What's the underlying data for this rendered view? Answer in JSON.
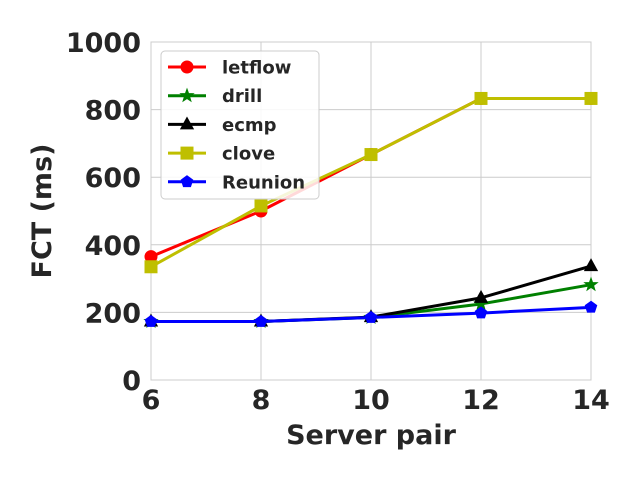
{
  "chart_data": {
    "type": "line",
    "xlabel": "Server pair",
    "ylabel": "FCT (ms)",
    "x": [
      6,
      8,
      10,
      12,
      14
    ],
    "xticks": [
      "6",
      "8",
      "10",
      "12",
      "14"
    ],
    "yticks": [
      "0",
      "200",
      "400",
      "600",
      "800",
      "1000"
    ],
    "xlim": [
      6,
      14
    ],
    "ylim": [
      0,
      1000
    ],
    "grid": true,
    "legend_position": "top-left",
    "series": [
      {
        "name": "letflow",
        "color": "#ff0000",
        "marker": "circle",
        "values": [
          365,
          500,
          667,
          833,
          833
        ]
      },
      {
        "name": "drill",
        "color": "#008000",
        "marker": "star",
        "values": [
          173,
          173,
          185,
          225,
          282
        ]
      },
      {
        "name": "ecmp",
        "color": "#000000",
        "marker": "triangle",
        "values": [
          173,
          173,
          186,
          243,
          337
        ]
      },
      {
        "name": "clove",
        "color": "#bfbf00",
        "marker": "square",
        "values": [
          335,
          515,
          667,
          833,
          833
        ]
      },
      {
        "name": "Reunion",
        "color": "#0000ff",
        "marker": "pentagon",
        "values": [
          173,
          173,
          185,
          198,
          215
        ]
      }
    ]
  }
}
